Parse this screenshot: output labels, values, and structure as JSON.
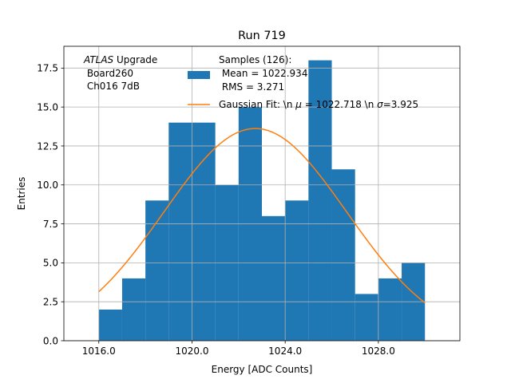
{
  "chart_data": {
    "type": "histogram",
    "title": "Run 719",
    "xlabel": "Energy [ADC Counts]",
    "ylabel": "Entries",
    "xlim": [
      1014.5,
      1031.5
    ],
    "ylim": [
      0,
      18.9
    ],
    "grid": true,
    "xticks": [
      1016,
      1020,
      1024,
      1028
    ],
    "xtick_labels": [
      "1016.0",
      "1020.0",
      "1024.0",
      "1028.0"
    ],
    "yticks": [
      0,
      2.5,
      5,
      7.5,
      10,
      12.5,
      15,
      17.5
    ],
    "ytick_labels": [
      "0.0",
      "2.5",
      "5.0",
      "7.5",
      "10.0",
      "12.5",
      "15.0",
      "17.5"
    ],
    "bin_edges": [
      1016,
      1017,
      1018,
      1019,
      1020,
      1021,
      1022,
      1023,
      1024,
      1025,
      1026,
      1027,
      1028,
      1029,
      1030
    ],
    "counts": [
      2,
      4,
      9,
      14,
      14,
      10,
      15,
      8,
      9,
      18,
      11,
      3,
      4,
      5
    ],
    "bar_color": "#1f77b4",
    "fit": {
      "type": "gaussian",
      "mu": 1022.718,
      "sigma": 3.925,
      "amplitude": 13.62,
      "x_range": [
        1016,
        1030
      ],
      "color": "#ff7f0e"
    },
    "annotation": {
      "atlas": "ATLAS",
      "upgrade": " Upgrade",
      "line2": " Board260",
      "line3": " Ch016 7dB"
    },
    "legend": {
      "location": "top-center",
      "hist_label_line1": "Samples (126):",
      "hist_label_line2": " Mean = 1022.934",
      "hist_label_line3": " RMS = 3.271",
      "fit_label_prefix": "Gaussian Fit: \\n ",
      "fit_mu_symbol": "μ",
      "fit_mu_value": " = 1022.718 \\n ",
      "fit_sigma_symbol": "σ",
      "fit_sigma_value": "=3.925"
    }
  }
}
